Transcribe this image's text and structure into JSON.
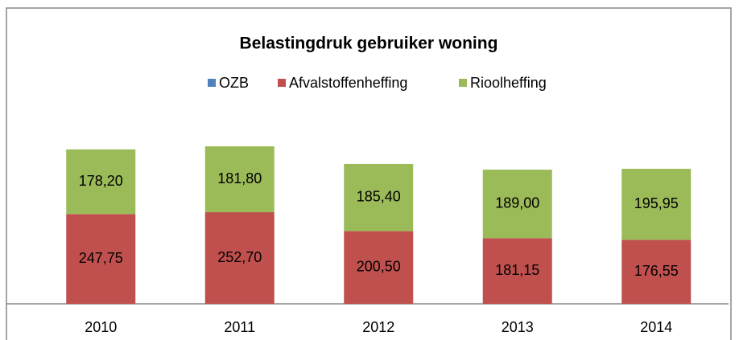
{
  "chart_data": {
    "type": "stacked_bar",
    "title": "Belastingdruk  gebruiker woning",
    "categories": [
      "2010",
      "2011",
      "2012",
      "2013",
      "2014"
    ],
    "series": [
      {
        "name": "OZB",
        "color": "#4f81bd",
        "values": [
          0,
          0,
          0,
          0,
          0
        ]
      },
      {
        "name": "Afvalstoffenheffing",
        "color": "#c0504d",
        "values": [
          247.75,
          252.7,
          200.5,
          181.15,
          176.55
        ],
        "value_labels": [
          "247,75",
          "252,70",
          "200,50",
          "181,15",
          "176,55"
        ]
      },
      {
        "name": "Rioolheffing",
        "color": "#9bbb59",
        "values": [
          178.2,
          181.8,
          185.4,
          189.0,
          195.95
        ],
        "value_labels": [
          "178,20",
          "181,80",
          "185,40",
          "189,00",
          "195,95"
        ]
      }
    ],
    "legend": "top"
  }
}
